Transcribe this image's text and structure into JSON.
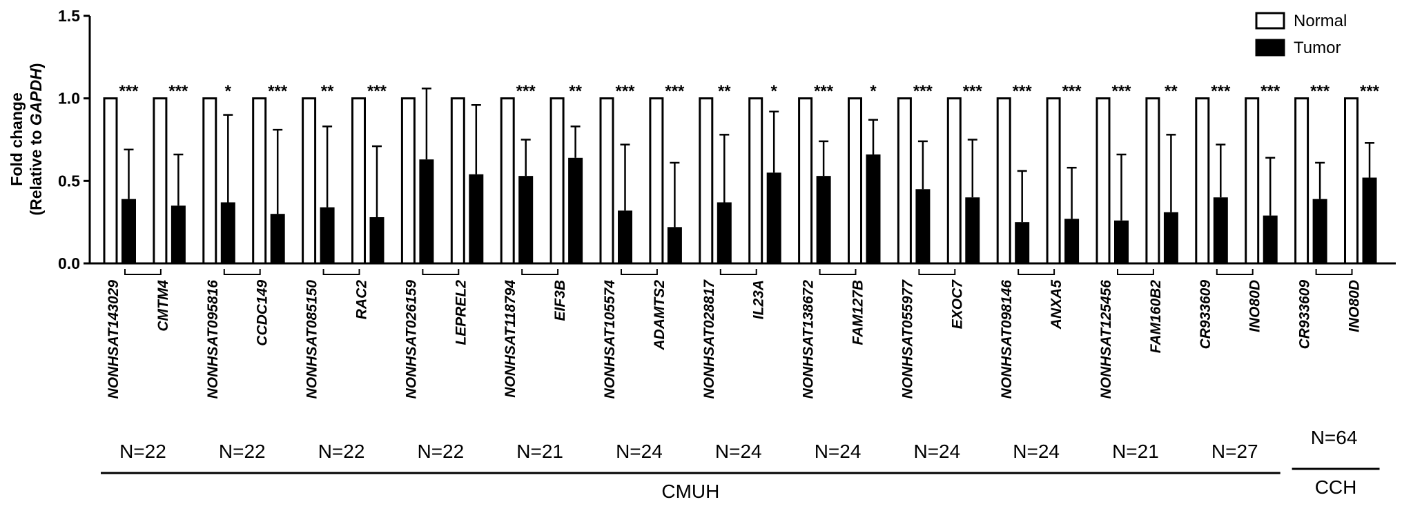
{
  "chart_data": {
    "type": "bar",
    "y_label": [
      "Fold change",
      "(Relative to ",
      "GAPDH",
      ")"
    ],
    "categories": [
      "NONHSAT143029",
      "CMTM4",
      "NONHSAT095816",
      "CCDC149",
      "NONHSAT085150",
      "RAC2",
      "NONHSAT026159",
      "LEPREL2",
      "NONHSAT118794",
      "EIF3B",
      "NONHSAT105574",
      "ADAMTS2",
      "NONHSAT028817",
      "IL23A",
      "NONHSAT138672",
      "FAM127B",
      "NONHSAT055977",
      "EXOC7",
      "NONHSAT098146",
      "ANXA5",
      "NONHSAT125456",
      "FAM160B2",
      "CR933609",
      "INO80D",
      "CR933609",
      "INO80D"
    ],
    "series": [
      {
        "name": "Normal",
        "color": "#ffffff",
        "values": [
          1,
          1,
          1,
          1,
          1,
          1,
          1,
          1,
          1,
          1,
          1,
          1,
          1,
          1,
          1,
          1,
          1,
          1,
          1,
          1,
          1,
          1,
          1,
          1,
          1,
          1
        ]
      },
      {
        "name": "Tumor",
        "color": "#000000",
        "values": [
          0.39,
          0.35,
          0.37,
          0.3,
          0.34,
          0.28,
          0.63,
          0.54,
          0.53,
          0.64,
          0.32,
          0.22,
          0.37,
          0.55,
          0.53,
          0.66,
          0.45,
          0.4,
          0.25,
          0.27,
          0.26,
          0.31,
          0.4,
          0.29,
          0.39,
          0.52
        ],
        "errors": [
          0.3,
          0.31,
          0.53,
          0.51,
          0.49,
          0.43,
          0.43,
          0.42,
          0.22,
          0.19,
          0.4,
          0.39,
          0.41,
          0.37,
          0.21,
          0.21,
          0.29,
          0.35,
          0.31,
          0.31,
          0.4,
          0.47,
          0.32,
          0.35,
          0.22,
          0.21
        ]
      }
    ],
    "significance": [
      "***",
      "***",
      "*",
      "***",
      "**",
      "***",
      null,
      null,
      "***",
      "**",
      "***",
      "***",
      "**",
      "*",
      "***",
      "*",
      "***",
      "***",
      "***",
      "***",
      "***",
      "**",
      "***",
      "***",
      "***",
      "***"
    ],
    "cohorts": [
      {
        "name": "CMUH",
        "n_labels": [
          "N=22",
          "N=22",
          "N=22",
          "N=22",
          "N=21",
          "N=24",
          "N=24",
          "N=24",
          "N=24",
          "N=24",
          "N=21",
          "N=27"
        ]
      },
      {
        "name": "CCH",
        "n_labels": [
          "N=64"
        ]
      }
    ],
    "ylim": [
      0,
      1.5
    ],
    "yticks": [
      {
        "value": 0,
        "label": "0.0"
      },
      {
        "value": 0.5,
        "label": "0.5"
      },
      {
        "value": 1,
        "label": "1.0"
      },
      {
        "value": 1.5,
        "label": "1.5"
      }
    ],
    "legend": "top-right"
  }
}
